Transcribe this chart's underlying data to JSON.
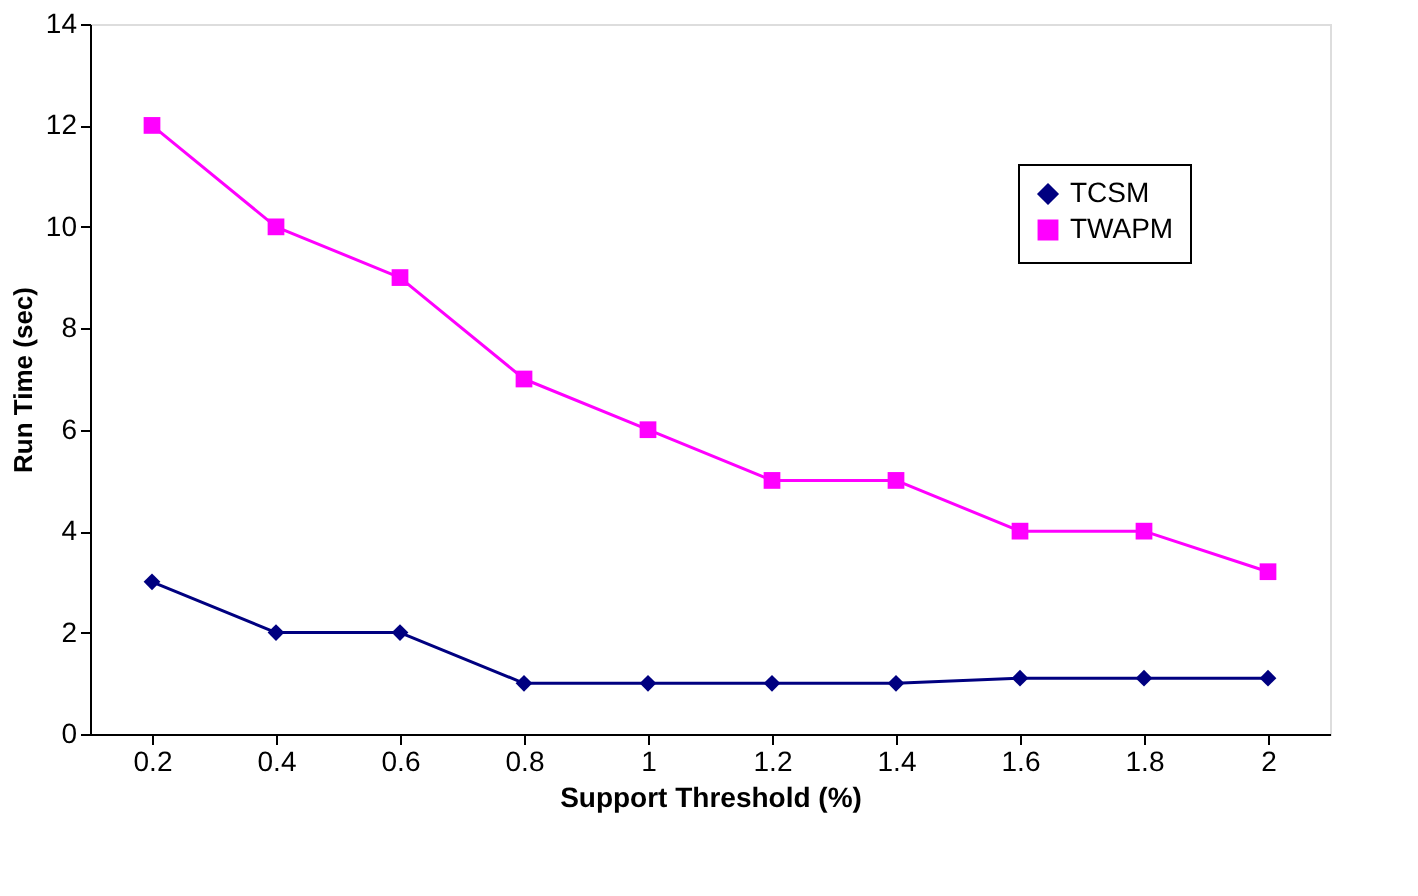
{
  "chart_data": {
    "type": "line",
    "xlabel": "Support Threshold (%)",
    "ylabel": "Run Time (sec)",
    "categories": [
      "0.2",
      "0.4",
      "0.6",
      "0.8",
      "1",
      "1.2",
      "1.4",
      "1.6",
      "1.8",
      "2"
    ],
    "series": [
      {
        "name": "TCSM",
        "color": "#000080",
        "marker": "diamond",
        "values": [
          3,
          2,
          2,
          1,
          1,
          1,
          1,
          1.1,
          1.1,
          1.1
        ]
      },
      {
        "name": "TWAPM",
        "color": "#ff00ff",
        "marker": "square",
        "values": [
          12,
          10,
          9,
          7,
          6,
          5,
          5,
          4,
          4,
          3.2
        ]
      }
    ],
    "ylim": [
      0,
      14
    ],
    "yticks": [
      0,
      2,
      4,
      6,
      8,
      10,
      12,
      14
    ],
    "grid": false,
    "legend": "top right",
    "line_style": "solid"
  }
}
